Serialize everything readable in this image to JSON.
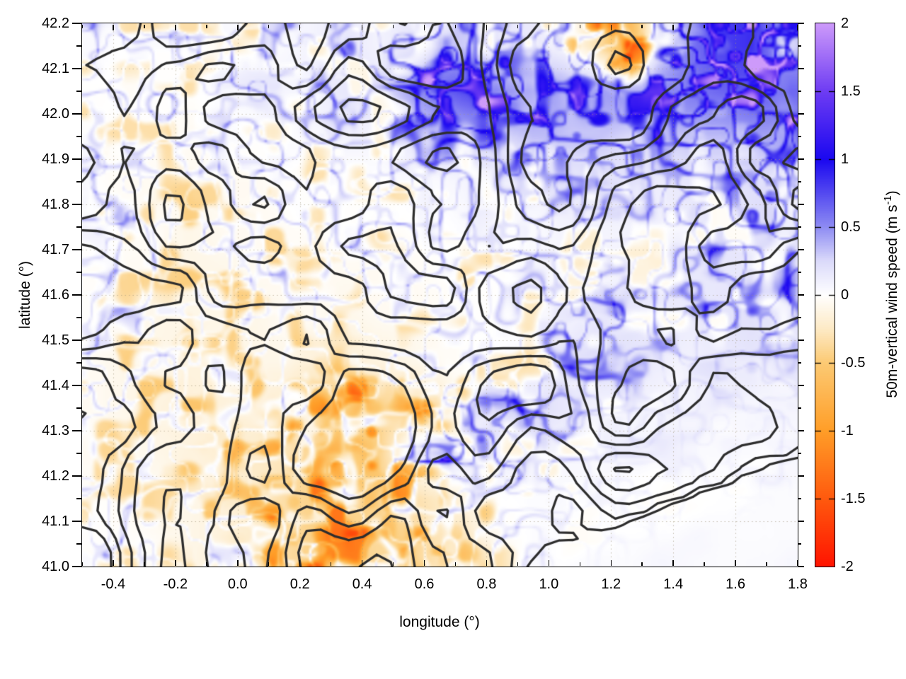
{
  "chart_data": {
    "type": "heatmap",
    "title": "",
    "xlabel": "longitude (°)",
    "ylabel": "latitude (°)",
    "xlim": [
      -0.5,
      1.8
    ],
    "ylim": [
      41.0,
      42.2
    ],
    "x_major_tick_step": 0.2,
    "x_minor_tick_step": 0.1,
    "y_major_tick_step": 0.1,
    "y_minor_tick_step": 0.05,
    "x_tick_labels": [
      "-0.4",
      "-0.2",
      "0.0",
      "0.2",
      "0.4",
      "0.6",
      "0.8",
      "1.0",
      "1.2",
      "1.4",
      "1.6",
      "1.8"
    ],
    "x_tick_values": [
      -0.4,
      -0.2,
      0.0,
      0.2,
      0.4,
      0.6,
      0.8,
      1.0,
      1.2,
      1.4,
      1.6,
      1.8
    ],
    "y_tick_labels": [
      "41.0",
      "41.1",
      "41.2",
      "41.3",
      "41.4",
      "41.5",
      "41.6",
      "41.7",
      "41.8",
      "41.9",
      "42.0",
      "42.1",
      "42.2"
    ],
    "y_tick_values": [
      41.0,
      41.1,
      41.2,
      41.3,
      41.4,
      41.5,
      41.6,
      41.7,
      41.8,
      41.9,
      42.0,
      42.1,
      42.2
    ],
    "grid": {
      "show": true,
      "style": "dotted",
      "color": "rgba(160,148,122,0.6)"
    },
    "colorbar": {
      "label_main": "50m-vertical wind speed (m s",
      "label_sup": "-1",
      "label_end": ")",
      "min": -2,
      "max": 2,
      "tick_values": [
        2,
        1.5,
        1,
        0.5,
        0,
        -0.5,
        -1,
        -1.5,
        -2
      ],
      "tick_labels": [
        "2",
        "1.5",
        "1",
        "0.5",
        "0",
        "-0.5",
        "-1",
        "-1.5",
        "-2"
      ],
      "palette_stops": [
        [
          -2,
          "#ff1400"
        ],
        [
          -1.5,
          "#ff5a0e"
        ],
        [
          -1,
          "#ff9e28"
        ],
        [
          -0.5,
          "#fcca74"
        ],
        [
          -0.25,
          "#fdeac6"
        ],
        [
          0,
          "#ffffff"
        ],
        [
          0.25,
          "#dbdafa"
        ],
        [
          0.5,
          "#8e8cf3"
        ],
        [
          0.75,
          "#544af0"
        ],
        [
          1,
          "#1b08f0"
        ],
        [
          1.5,
          "#6e3cf3"
        ],
        [
          2,
          "#cd9afa"
        ]
      ]
    },
    "field": {
      "note": "Approximate 0.1-degree mean vertical wind speed read from the map; fine filament texture overlays these means.",
      "lon_center_start": -0.45,
      "lon_step": 0.1,
      "lat_center_start": 42.15,
      "lat_step": -0.1,
      "mean_values_grid": [
        [
          0.15,
          0.1,
          0.1,
          0.1,
          0.1,
          0.1,
          0.15,
          0.2,
          0.3,
          0.2,
          0.3,
          0.5,
          0.45,
          0.3,
          0.3,
          0.2,
          -0.1,
          -0.65,
          0.3,
          0.8,
          1.1,
          1.2,
          0.6
        ],
        [
          0.1,
          0.1,
          0.1,
          0.1,
          0.15,
          0.2,
          0.2,
          0.25,
          0.3,
          0.3,
          0.6,
          0.9,
          1.1,
          0.9,
          0.7,
          0.6,
          0.6,
          0.7,
          0.7,
          0.8,
          0.9,
          1.0,
          0.9
        ],
        [
          0.1,
          0.1,
          0.1,
          0.05,
          0.1,
          0.1,
          0.15,
          0.15,
          0.2,
          0.2,
          0.3,
          0.4,
          0.5,
          0.4,
          0.5,
          0.5,
          0.5,
          0.4,
          0.4,
          0.5,
          0.5,
          0.6,
          0.6
        ],
        [
          0.1,
          0.05,
          0.05,
          0.05,
          0.05,
          0.05,
          0.1,
          0.1,
          0.1,
          0.1,
          0.15,
          0.15,
          0.2,
          0.2,
          0.2,
          0.25,
          0.3,
          0.3,
          0.25,
          0.3,
          0.3,
          0.35,
          0.4
        ],
        [
          0.15,
          0.1,
          0.05,
          0.0,
          0.05,
          0.05,
          0.05,
          0.1,
          0.1,
          0.05,
          0.1,
          0.1,
          0.15,
          0.1,
          0.15,
          0.2,
          0.2,
          0.2,
          0.2,
          0.25,
          0.3,
          0.35,
          0.45
        ],
        [
          0.1,
          0.05,
          0.05,
          0.0,
          0.0,
          0.05,
          0.05,
          0.05,
          0.05,
          0.05,
          0.05,
          0.1,
          0.1,
          0.1,
          0.15,
          0.15,
          0.15,
          0.2,
          0.25,
          0.3,
          0.3,
          0.3,
          0.35
        ],
        [
          0.1,
          0.05,
          0.0,
          0.0,
          0.0,
          0.0,
          0.05,
          0.05,
          0.0,
          0.05,
          0.05,
          0.05,
          0.1,
          0.1,
          0.15,
          0.2,
          0.3,
          0.35,
          0.3,
          0.25,
          0.3,
          0.35,
          0.3
        ],
        [
          0.05,
          0.0,
          0.0,
          -0.05,
          0.0,
          0.0,
          0.0,
          -0.1,
          -0.1,
          -0.05,
          0.0,
          0.05,
          0.1,
          0.15,
          0.2,
          0.35,
          0.4,
          0.3,
          0.2,
          0.15,
          0.2,
          0.25,
          0.2
        ],
        [
          0.05,
          0.0,
          -0.05,
          -0.1,
          -0.1,
          -0.05,
          -0.1,
          -0.2,
          -0.3,
          -0.3,
          -0.25,
          -0.1,
          0.2,
          0.4,
          0.4,
          0.3,
          0.15,
          0.1,
          0.1,
          0.1,
          0.1,
          0.1,
          0.1
        ],
        [
          0.05,
          0.05,
          0.0,
          -0.05,
          -0.1,
          -0.1,
          -0.15,
          -0.3,
          -0.4,
          -0.3,
          0.3,
          0.5,
          0.4,
          0.3,
          0.2,
          0.15,
          0.1,
          0.1,
          0.05,
          0.05,
          0.05,
          0.05,
          0.05
        ],
        [
          0.1,
          0.05,
          0.05,
          0.0,
          -0.05,
          -0.1,
          -0.2,
          -0.3,
          -0.25,
          -0.3,
          -0.2,
          -0.1,
          0.0,
          0.1,
          0.1,
          0.05,
          0.05,
          0.0,
          0.0,
          0.0,
          0.0,
          0.0,
          0.05
        ],
        [
          0.1,
          0.1,
          0.05,
          0.0,
          -0.05,
          -0.1,
          -0.2,
          -0.3,
          -0.3,
          -0.25,
          -0.3,
          -0.2,
          -0.1,
          0.0,
          0.05,
          0.0,
          0.0,
          0.0,
          0.0,
          0.0,
          0.0,
          0.0,
          0.0
        ]
      ],
      "texture_amplitude_grid": [
        [
          1,
          1,
          1,
          1,
          1,
          1,
          1,
          1,
          1.1,
          1,
          1.1,
          1.3,
          1.3,
          1.2,
          1.2,
          1.2,
          1.5,
          1.6,
          1.5,
          1.6,
          1.7,
          1.7,
          1.6
        ],
        [
          1,
          1,
          1,
          1,
          1,
          1,
          1,
          1.1,
          1.1,
          1.1,
          1.4,
          1.6,
          1.7,
          1.6,
          1.4,
          1.3,
          1.3,
          1.3,
          1.3,
          1.4,
          1.5,
          1.6,
          1.5
        ],
        [
          1,
          1,
          1,
          1,
          1,
          1,
          1,
          1,
          1,
          1,
          1.1,
          1.2,
          1.3,
          1.2,
          1.2,
          1.2,
          1.2,
          1.1,
          1.1,
          1.2,
          1.2,
          1.3,
          1.3
        ],
        [
          1,
          1,
          1,
          1,
          1,
          1,
          1,
          1,
          1,
          1,
          1,
          1,
          1,
          1,
          1,
          1,
          1,
          1,
          1,
          1,
          1,
          1.1,
          1.2
        ],
        [
          1.1,
          1,
          1,
          1,
          1,
          1,
          1,
          1,
          1,
          1,
          1,
          1,
          1,
          1,
          1,
          1,
          1,
          1,
          1,
          1,
          1,
          1.1,
          1.2
        ],
        [
          1.1,
          1,
          1,
          1,
          1,
          1,
          1,
          1,
          1,
          1,
          1,
          1,
          1,
          1,
          1,
          1,
          1,
          1,
          1.1,
          1.1,
          1.1,
          1.1,
          1.1
        ],
        [
          1,
          1,
          1,
          1,
          1,
          1,
          1,
          1,
          1,
          1,
          1,
          1,
          1,
          1,
          1,
          1.1,
          1.2,
          1.2,
          1.1,
          1,
          1,
          1.1,
          1
        ],
        [
          1,
          1,
          1,
          1,
          1,
          1,
          1,
          1,
          1,
          1,
          1,
          1,
          1,
          1.1,
          1.2,
          1.3,
          1.2,
          0.9,
          0.6,
          0.5,
          0.5,
          0.5,
          0.5
        ],
        [
          1,
          1,
          1,
          1,
          1,
          1.1,
          1.2,
          1.3,
          1.4,
          1.4,
          1.3,
          1.2,
          1.3,
          1.4,
          1.3,
          1.1,
          0.7,
          0.4,
          0.35,
          0.3,
          0.3,
          0.3,
          0.3
        ],
        [
          1,
          1,
          1,
          1,
          1.1,
          1.2,
          1.3,
          1.5,
          1.6,
          1.5,
          1.5,
          1.5,
          1.4,
          1.2,
          1.0,
          0.8,
          0.5,
          0.35,
          0.3,
          0.25,
          0.25,
          0.25,
          0.25
        ],
        [
          1,
          1,
          1,
          1,
          1.1,
          1.2,
          1.4,
          1.5,
          1.5,
          1.5,
          1.4,
          1.3,
          1.1,
          1.0,
          0.8,
          0.5,
          0.35,
          0.3,
          0.25,
          0.2,
          0.2,
          0.2,
          0.2
        ],
        [
          1,
          1,
          1,
          1,
          1.1,
          1.2,
          1.4,
          1.5,
          1.5,
          1.4,
          1.4,
          1.2,
          1.0,
          0.8,
          0.5,
          0.3,
          0.25,
          0.2,
          0.2,
          0.15,
          0.15,
          0.15,
          0.15
        ]
      ],
      "quiet_plain_polygon": [
        [
          0.95,
          41.0
        ],
        [
          1.8,
          41.0
        ],
        [
          1.8,
          41.22
        ]
      ]
    },
    "contours": {
      "color": "#2e2e2e",
      "width": 3.3,
      "description": "dark terrain elevation contour lines overlaid on the wind-speed field"
    }
  },
  "layout_colors": {
    "frame": "#000000",
    "background": "#ffffff"
  }
}
